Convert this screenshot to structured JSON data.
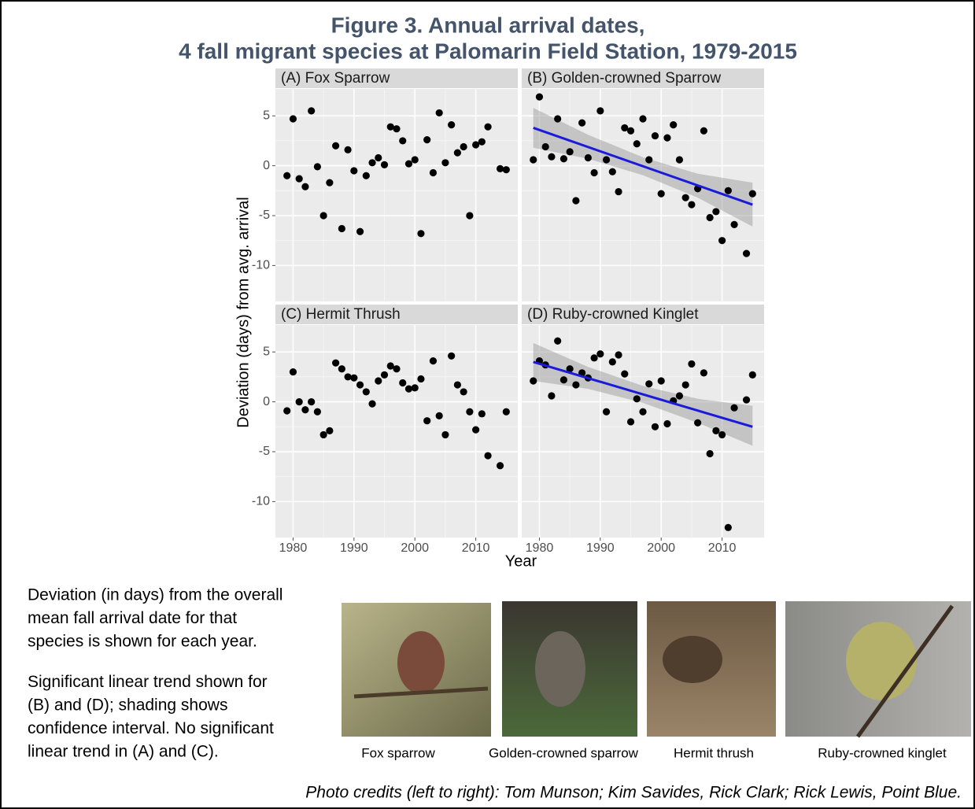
{
  "title": [
    "Figure 3. Annual arrival dates,",
    "4 fall migrant species at Palomarin Field Station, 1979-2015"
  ],
  "x_label": "Year",
  "y_label": "Deviation (days) from avg. arrival",
  "chart_data": [
    {
      "type": "scatter",
      "panel_title": "(A) Fox Sparrow",
      "color": "#000000",
      "x": [
        1979,
        1980,
        1981,
        1982,
        1983,
        1984,
        1985,
        1986,
        1987,
        1988,
        1989,
        1990,
        1991,
        1992,
        1993,
        1994,
        1995,
        1996,
        1997,
        1998,
        1999,
        2000,
        2001,
        2002,
        2003,
        2004,
        2005,
        2006,
        2007,
        2008,
        2009,
        2010,
        2011,
        2012,
        2014,
        2015
      ],
      "values": [
        -1.0,
        4.7,
        -1.3,
        -2.1,
        5.5,
        -0.1,
        -5.0,
        -1.7,
        2.0,
        -6.3,
        1.6,
        -0.5,
        -6.6,
        -1.0,
        0.3,
        0.8,
        0.1,
        3.9,
        3.7,
        2.5,
        0.2,
        0.6,
        -6.8,
        2.6,
        -0.7,
        5.3,
        0.3,
        4.1,
        1.3,
        1.9,
        -5.0,
        2.1,
        2.4,
        3.9,
        -0.3,
        -0.4
      ],
      "xlim": [
        1977.1,
        2016.9
      ],
      "ylim": [
        -13.6,
        7.7
      ],
      "xticks": [
        1980,
        1990,
        2000,
        2010
      ],
      "yticks": [
        -10,
        -5,
        0,
        5
      ],
      "grid": true
    },
    {
      "type": "scatter",
      "panel_title": "(B) Golden-crowned Sparrow",
      "color": "#000000",
      "x": [
        1979,
        1980,
        1981,
        1982,
        1983,
        1984,
        1985,
        1986,
        1987,
        1988,
        1989,
        1990,
        1991,
        1992,
        1993,
        1994,
        1995,
        1996,
        1997,
        1998,
        1999,
        2000,
        2001,
        2002,
        2003,
        2004,
        2005,
        2006,
        2007,
        2008,
        2009,
        2010,
        2011,
        2012,
        2014,
        2015
      ],
      "values": [
        0.6,
        6.9,
        1.9,
        0.9,
        4.7,
        0.7,
        1.4,
        -3.5,
        4.3,
        0.8,
        -0.7,
        5.5,
        0.6,
        -0.6,
        -2.6,
        3.8,
        3.5,
        2.2,
        4.7,
        0.6,
        3.0,
        -2.8,
        2.8,
        4.1,
        0.6,
        -3.2,
        -3.9,
        -2.3,
        3.5,
        -5.2,
        -4.6,
        -7.5,
        -2.5,
        -5.9,
        -8.8,
        -2.8
      ],
      "trend": {
        "x": [
          1979,
          2015
        ],
        "values": [
          3.8,
          -3.9
        ],
        "color": "#1a1adb"
      },
      "ci": {
        "x": [
          1979,
          1988,
          1997,
          2006,
          2015
        ],
        "upper": [
          5.8,
          3.1,
          0.85,
          -0.8,
          -1.7
        ],
        "lower": [
          1.8,
          0.7,
          -0.95,
          -3.2,
          -6.1
        ],
        "color": "#9e9e9e"
      },
      "xlim": [
        1977.1,
        2016.9
      ],
      "ylim": [
        -13.6,
        7.7
      ],
      "xticks": [
        1980,
        1990,
        2000,
        2010
      ],
      "yticks": [
        -10,
        -5,
        0,
        5
      ],
      "grid": true
    },
    {
      "type": "scatter",
      "panel_title": "(C) Hermit Thrush",
      "color": "#000000",
      "x": [
        1979,
        1980,
        1981,
        1982,
        1983,
        1984,
        1985,
        1986,
        1987,
        1988,
        1989,
        1990,
        1991,
        1992,
        1993,
        1994,
        1995,
        1996,
        1997,
        1998,
        1999,
        2000,
        2001,
        2002,
        2003,
        2004,
        2005,
        2006,
        2007,
        2008,
        2009,
        2010,
        2011,
        2012,
        2014,
        2015
      ],
      "values": [
        -0.9,
        3.0,
        0.0,
        -0.8,
        0.0,
        -1.0,
        -3.3,
        -2.9,
        3.9,
        3.3,
        2.5,
        2.4,
        1.7,
        1.0,
        -0.2,
        2.1,
        2.7,
        3.6,
        3.3,
        1.9,
        1.3,
        1.4,
        2.3,
        -1.9,
        4.1,
        -1.4,
        -3.3,
        4.6,
        1.7,
        1.0,
        -1.0,
        -2.8,
        -1.2,
        -5.4,
        -6.4,
        -1.0
      ],
      "xlim": [
        1977.1,
        2016.9
      ],
      "ylim": [
        -13.6,
        7.7
      ],
      "xticks": [
        1980,
        1990,
        2000,
        2010
      ],
      "yticks": [
        -10,
        -5,
        0,
        5
      ],
      "grid": true
    },
    {
      "type": "scatter",
      "panel_title": "(D) Ruby-crowned Kinglet",
      "color": "#000000",
      "x": [
        1979,
        1980,
        1981,
        1982,
        1983,
        1984,
        1985,
        1986,
        1987,
        1988,
        1989,
        1990,
        1991,
        1992,
        1993,
        1994,
        1995,
        1996,
        1997,
        1998,
        1999,
        2000,
        2001,
        2002,
        2003,
        2004,
        2005,
        2006,
        2007,
        2008,
        2009,
        2010,
        2011,
        2012,
        2014,
        2015
      ],
      "values": [
        2.1,
        4.1,
        3.7,
        0.6,
        6.1,
        2.2,
        3.3,
        1.7,
        2.9,
        2.4,
        4.4,
        4.8,
        -1.0,
        4.0,
        4.7,
        2.8,
        -2.0,
        0.3,
        -1.0,
        1.8,
        -2.5,
        2.1,
        -2.2,
        0.1,
        0.6,
        1.7,
        3.8,
        -2.1,
        2.9,
        -5.2,
        -2.9,
        -3.3,
        -12.6,
        -0.6,
        0.2,
        2.7
      ],
      "trend": {
        "x": [
          1979,
          2015
        ],
        "values": [
          4.0,
          -2.5
        ],
        "color": "#1a1adb"
      },
      "ci": {
        "x": [
          1979,
          1988,
          1997,
          2006,
          2015
        ],
        "upper": [
          5.9,
          3.5,
          1.6,
          0.3,
          -0.4
        ],
        "lower": [
          2.1,
          1.3,
          -0.1,
          -2.1,
          -4.4
        ],
        "color": "#9e9e9e"
      },
      "xlim": [
        1977.1,
        2016.9
      ],
      "ylim": [
        -13.6,
        7.7
      ],
      "xticks": [
        1980,
        1990,
        2000,
        2010
      ],
      "yticks": [
        -10,
        -5,
        0,
        5
      ],
      "grid": true
    }
  ],
  "notes": [
    [
      "Deviation (in days) from the overall",
      "mean fall arrival date for that",
      "species is shown for each year."
    ],
    [
      "Significant linear trend shown for",
      "(B) and (D); shading shows",
      "confidence interval. No significant",
      "linear trend in (A) and (C)."
    ]
  ],
  "photos": [
    "Fox sparrow",
    "Golden-crowned sparrow",
    "Hermit thrush",
    "Ruby-crowned kinglet"
  ],
  "credits": "Photo credits (left to right): Tom Munson; Kim Savides, Rick Clark; Rick Lewis, Point Blue."
}
